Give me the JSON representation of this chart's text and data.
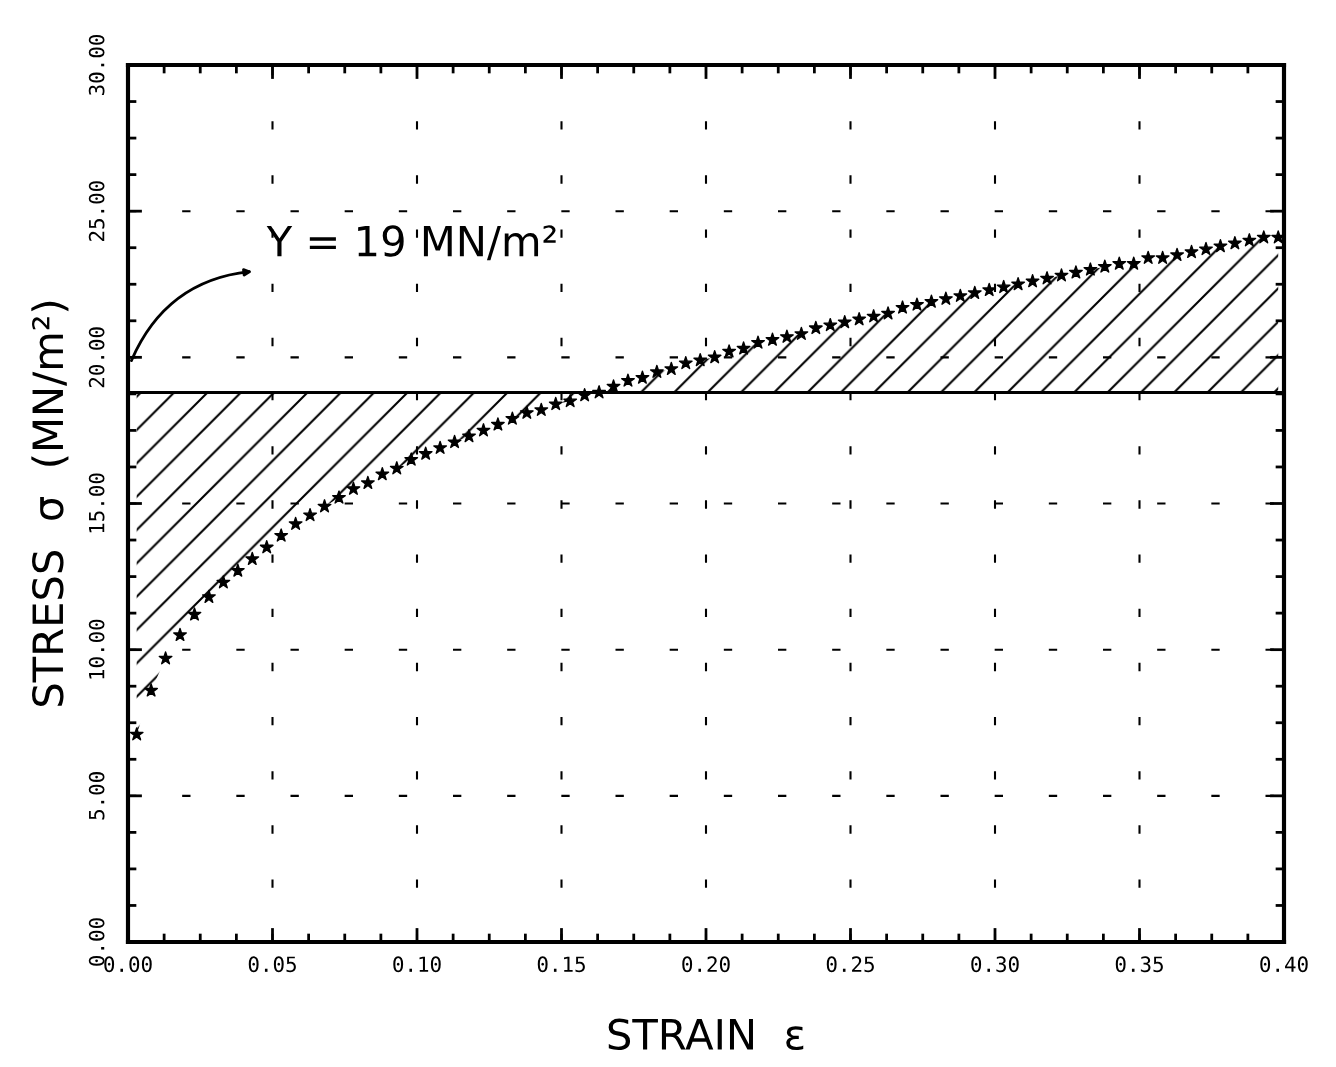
{
  "chart_data": {
    "type": "scatter",
    "xlabel": "STRAIN  ε",
    "ylabel": "STRESS  σ  (MN/m²)",
    "x": [
      0.003,
      0.008,
      0.013,
      0.018,
      0.023,
      0.028,
      0.033,
      0.038,
      0.043,
      0.048,
      0.053,
      0.058,
      0.063,
      0.068,
      0.073,
      0.078,
      0.083,
      0.088,
      0.093,
      0.098,
      0.103,
      0.108,
      0.113,
      0.118,
      0.123,
      0.128,
      0.133,
      0.138,
      0.143,
      0.148,
      0.153,
      0.158,
      0.163,
      0.168,
      0.173,
      0.178,
      0.183,
      0.188,
      0.193,
      0.198,
      0.203,
      0.208,
      0.213,
      0.218,
      0.223,
      0.228,
      0.233,
      0.238,
      0.243,
      0.248,
      0.253,
      0.258,
      0.263,
      0.268,
      0.273,
      0.278,
      0.283,
      0.288,
      0.293,
      0.298,
      0.303,
      0.308,
      0.313,
      0.318,
      0.323,
      0.328,
      0.333,
      0.338,
      0.343,
      0.348,
      0.353,
      0.358,
      0.363,
      0.368,
      0.373,
      0.378,
      0.383,
      0.388,
      0.393,
      0.398
    ],
    "series": [
      {
        "color": "#000000",
        "values": [
          7.1,
          8.6,
          9.7,
          10.5,
          11.2,
          11.8,
          12.3,
          12.7,
          13.1,
          13.5,
          13.9,
          14.3,
          14.6,
          14.9,
          15.2,
          15.5,
          15.7,
          16.0,
          16.2,
          16.5,
          16.7,
          16.9,
          17.1,
          17.3,
          17.5,
          17.7,
          17.9,
          18.1,
          18.2,
          18.4,
          18.5,
          18.7,
          18.8,
          19.0,
          19.2,
          19.3,
          19.5,
          19.6,
          19.8,
          19.9,
          20.0,
          20.2,
          20.3,
          20.5,
          20.6,
          20.7,
          20.8,
          21.0,
          21.1,
          21.2,
          21.3,
          21.4,
          21.5,
          21.7,
          21.8,
          21.9,
          22.0,
          22.1,
          22.2,
          22.3,
          22.4,
          22.5,
          22.6,
          22.7,
          22.8,
          22.9,
          23.0,
          23.1,
          23.2,
          23.2,
          23.4,
          23.4,
          23.5,
          23.6,
          23.7,
          23.8,
          23.9,
          24.0,
          24.1,
          24.1
        ]
      }
    ],
    "marker": "star",
    "xlim": [
      0,
      0.4
    ],
    "ylim": [
      0,
      30
    ],
    "xticks": [
      {
        "value": 0,
        "label": "0.00"
      },
      {
        "value": 0.05,
        "label": "0.05"
      },
      {
        "value": 0.1,
        "label": "0.10"
      },
      {
        "value": 0.15,
        "label": "0.15"
      },
      {
        "value": 0.2,
        "label": "0.20"
      },
      {
        "value": 0.25,
        "label": "0.25"
      },
      {
        "value": 0.3,
        "label": "0.30"
      },
      {
        "value": 0.35,
        "label": "0.35"
      },
      {
        "value": 0.4,
        "label": "0.40"
      }
    ],
    "yticks": [
      {
        "value": 0,
        "label": "0.00"
      },
      {
        "value": 5,
        "label": "5.00"
      },
      {
        "value": 10,
        "label": "10.00"
      },
      {
        "value": 15,
        "label": "15.00"
      },
      {
        "value": 20,
        "label": "20.00"
      },
      {
        "value": 25,
        "label": "25.00"
      },
      {
        "value": 30,
        "label": "30.00"
      }
    ],
    "grid": true,
    "ref_lines": [
      {
        "axis": "y",
        "value": 18.8,
        "color": "#000000",
        "line_style": "solid"
      }
    ],
    "annotations": [
      "Y = 19 MN/m²"
    ]
  }
}
